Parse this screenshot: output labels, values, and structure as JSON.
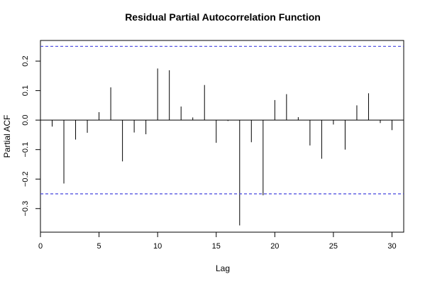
{
  "chart_data": {
    "type": "bar",
    "title": "Residual Partial Autocorrelation Function",
    "xlabel": "Lag",
    "ylabel": "Partial ACF",
    "xlim": [
      0,
      31
    ],
    "ylim": [
      -0.38,
      0.27
    ],
    "x_ticks": [
      0,
      5,
      10,
      15,
      20,
      25,
      30
    ],
    "y_ticks": [
      -0.3,
      -0.2,
      -0.1,
      0.0,
      0.1,
      0.2
    ],
    "y_tick_labels": [
      "−0.3",
      "−0.2",
      "−0.1",
      "0.0",
      "0.1",
      "0.2"
    ],
    "confidence_bounds": [
      0.25,
      -0.25
    ],
    "confidence_color": "#4444dd",
    "lags": [
      1,
      2,
      3,
      4,
      5,
      6,
      7,
      8,
      9,
      10,
      11,
      12,
      13,
      14,
      15,
      16,
      17,
      18,
      19,
      20,
      21,
      22,
      23,
      24,
      25,
      26,
      27,
      28,
      29,
      30
    ],
    "values": [
      -0.022,
      -0.215,
      -0.066,
      -0.043,
      0.027,
      0.111,
      -0.14,
      -0.042,
      -0.048,
      0.175,
      0.169,
      0.046,
      0.009,
      0.119,
      -0.077,
      -0.003,
      -0.357,
      -0.075,
      -0.255,
      0.068,
      0.088,
      0.01,
      -0.086,
      -0.131,
      -0.015,
      -0.1,
      0.05,
      0.091,
      -0.01,
      -0.034
    ],
    "grid": false,
    "legend": "none"
  }
}
